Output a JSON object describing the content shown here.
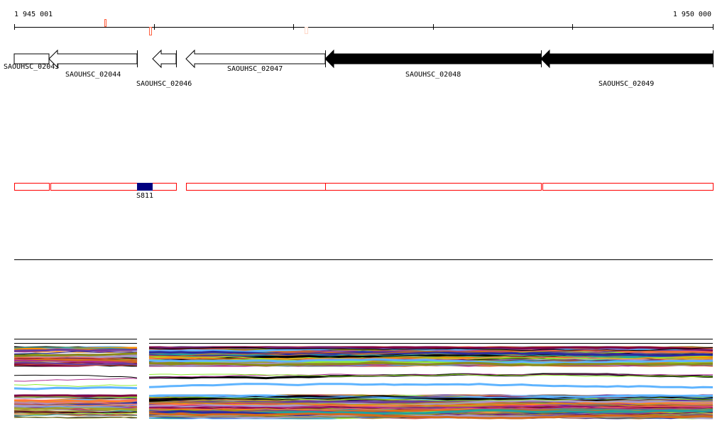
{
  "ruler": {
    "start_label": "1 945 001",
    "end_label": "1 950 000"
  },
  "genes": [
    {
      "label": "SAOUHSC_02043",
      "strand": "none",
      "filled": false
    },
    {
      "label": "SAOUHSC_02044",
      "strand": "-",
      "filled": false
    },
    {
      "label": "SAOUHSC_02046",
      "strand": "-",
      "filled": false
    },
    {
      "label": "SAOUHSC_02047",
      "strand": "-",
      "filled": false
    },
    {
      "label": "SAOUHSC_02048",
      "strand": "-",
      "filled": true
    },
    {
      "label": "SAOUHSC_02049",
      "strand": "-",
      "filled": true
    }
  ],
  "feature": {
    "label": "S811",
    "color": "#000080"
  },
  "colors": {
    "region_outline": "#ff0000",
    "marker": "#ff6040",
    "marker_pale": "#ffd8c8"
  }
}
